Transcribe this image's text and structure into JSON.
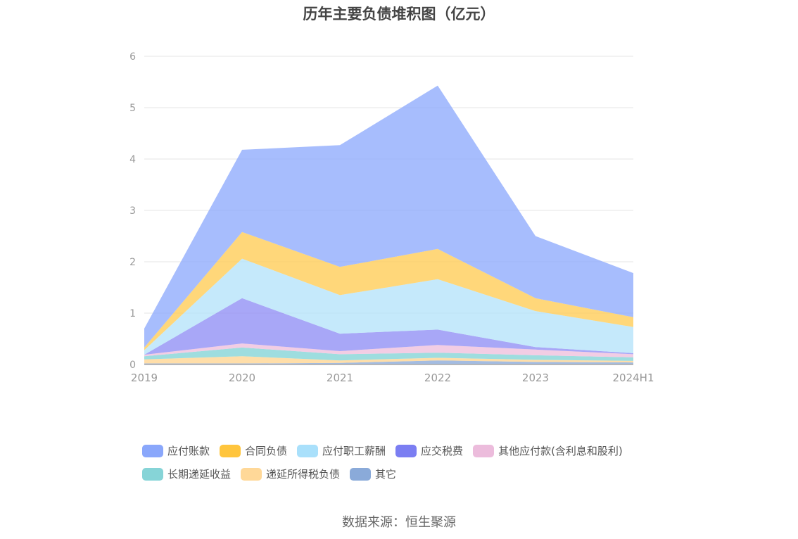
{
  "chart_data": {
    "type": "area",
    "stacked": true,
    "title": "历年主要负债堆积图（亿元）",
    "categories": [
      "2019",
      "2020",
      "2021",
      "2022",
      "2023",
      "2024H1"
    ],
    "ylim": [
      0,
      6
    ],
    "yticks": [
      "0",
      "1",
      "2",
      "3",
      "4",
      "5",
      "6"
    ],
    "grid": true,
    "legend_position": "bottom",
    "series": [
      {
        "name": "其它",
        "color": "#8aa9d8",
        "values": [
          0.02,
          0.02,
          0.03,
          0.08,
          0.05,
          0.04
        ]
      },
      {
        "name": "递延所得税负债",
        "color": "#ffd591",
        "values": [
          0.08,
          0.14,
          0.05,
          0.05,
          0.04,
          0.03
        ]
      },
      {
        "name": "长期递延收益",
        "color": "#83d3d6",
        "values": [
          0.06,
          0.17,
          0.12,
          0.1,
          0.09,
          0.07
        ]
      },
      {
        "name": "其他应付款(含利息和股利)",
        "color": "#eebfdd",
        "values": [
          0.03,
          0.08,
          0.06,
          0.15,
          0.11,
          0.06
        ]
      },
      {
        "name": "应交税费",
        "color": "#8f8ef5",
        "values": [
          0.0,
          0.88,
          0.34,
          0.3,
          0.05,
          0.02
        ]
      },
      {
        "name": "应付职工薪酬",
        "color": "#b5e3fa",
        "values": [
          0.09,
          0.77,
          0.75,
          0.98,
          0.7,
          0.51
        ]
      },
      {
        "name": "合同负债",
        "color": "#ffcc55",
        "values": [
          0.05,
          0.52,
          0.55,
          0.59,
          0.25,
          0.19
        ]
      },
      {
        "name": "应付账款",
        "color": "#8eaafc",
        "values": [
          0.37,
          1.6,
          2.37,
          3.18,
          1.21,
          0.86
        ]
      }
    ]
  },
  "legend": [
    {
      "label": "应付账款",
      "color": "#8aa7fb"
    },
    {
      "label": "合同负债",
      "color": "#ffc53d"
    },
    {
      "label": "应付职工薪酬",
      "color": "#a9e0fb"
    },
    {
      "label": "应交税费",
      "color": "#7b7ef2"
    },
    {
      "label": "其他应付款(含利息和股利)",
      "color": "#ecbcdc"
    },
    {
      "label": "长期递延收益",
      "color": "#86d4d7"
    },
    {
      "label": "递延所得税负债",
      "color": "#ffd898"
    },
    {
      "label": "其它",
      "color": "#8aaad9"
    }
  ],
  "source": "数据来源：恒生聚源"
}
